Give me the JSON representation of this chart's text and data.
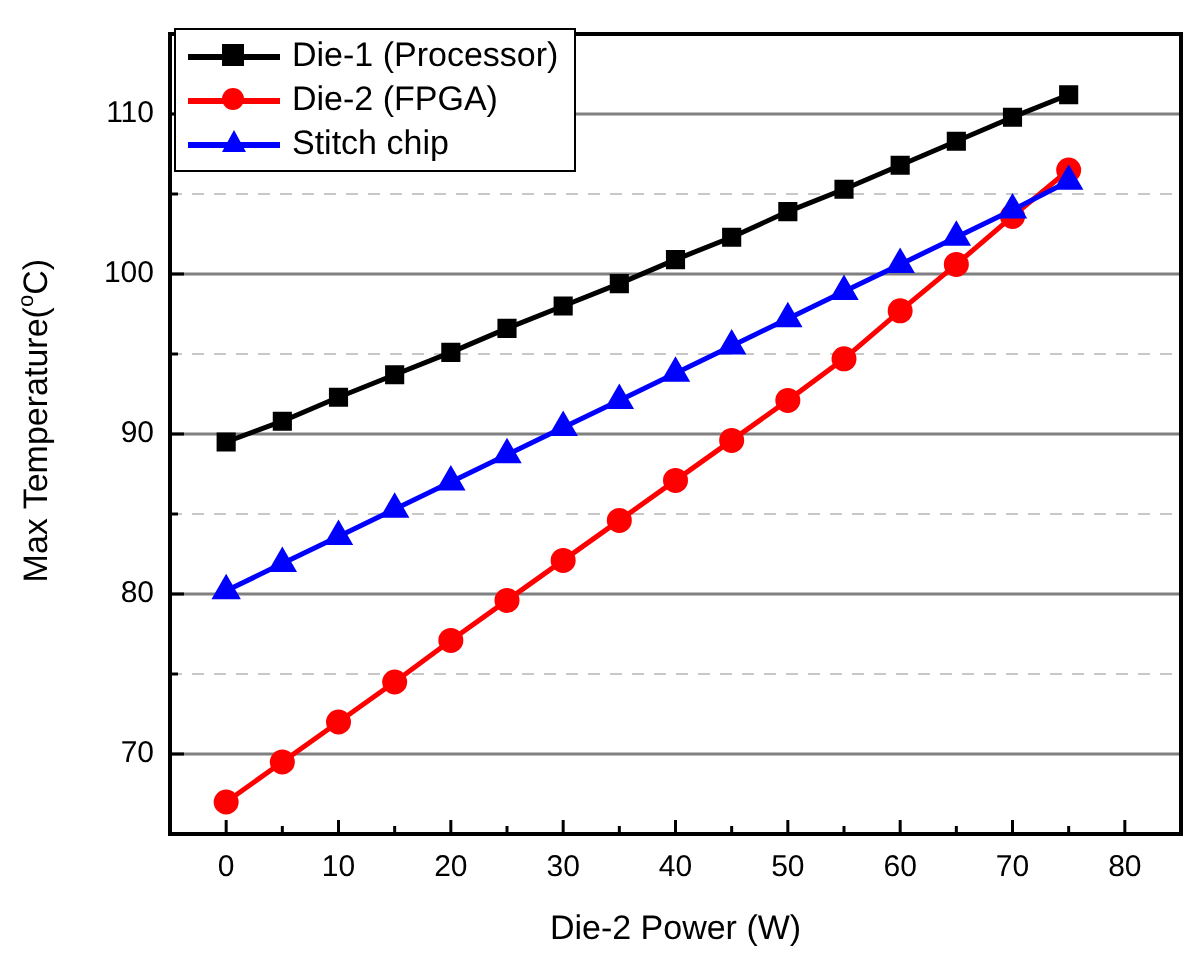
{
  "chart_data": {
    "type": "line",
    "xlabel": "Die-2 Power (W)",
    "ylabel": "Max Temperature($^{o}$C)",
    "x": [
      0,
      5,
      10,
      15,
      20,
      25,
      30,
      35,
      40,
      45,
      50,
      55,
      60,
      65,
      70,
      75
    ],
    "series": [
      {
        "name": "Die-1 (Processor)",
        "color": "#000000",
        "marker": "square",
        "values": [
          89.5,
          90.8,
          92.3,
          93.7,
          95.1,
          96.6,
          98.0,
          99.4,
          100.9,
          102.3,
          103.9,
          105.3,
          106.8,
          108.3,
          109.8,
          111.2
        ]
      },
      {
        "name": "Die-2 (FPGA)",
        "color": "#ff0000",
        "marker": "circle",
        "values": [
          67.0,
          69.5,
          72.0,
          74.5,
          77.1,
          79.6,
          82.1,
          84.6,
          87.1,
          89.6,
          92.1,
          94.7,
          97.7,
          100.6,
          103.6,
          106.5
        ]
      },
      {
        "name": "Stitch chip",
        "color": "#0000ff",
        "marker": "triangle",
        "values": [
          80.2,
          81.9,
          83.6,
          85.3,
          87.0,
          88.7,
          90.4,
          92.1,
          93.8,
          95.5,
          97.2,
          98.9,
          100.6,
          102.3,
          104.0,
          105.8
        ]
      }
    ],
    "xlim": [
      -5,
      85
    ],
    "xticks": [
      0,
      {
        "value": 5,
        "label": null
      },
      10,
      {
        "value": 15,
        "label": null
      },
      20,
      {
        "value": 25,
        "label": null
      },
      30,
      {
        "value": 35,
        "label": null
      },
      40,
      {
        "value": 45,
        "label": null
      },
      50,
      {
        "value": 55,
        "label": null
      },
      60,
      {
        "value": 65,
        "label": null
      },
      70,
      {
        "value": 75,
        "label": null
      },
      80
    ],
    "ylim": [
      65,
      115
    ],
    "yticks": [
      70,
      {
        "value": 75,
        "label": null
      },
      80,
      {
        "value": 85,
        "label": null
      },
      90,
      {
        "value": 95,
        "label": null
      },
      100,
      {
        "value": 105,
        "label": null
      },
      110
    ],
    "grid": "y",
    "legend": "top left",
    "line_style": "solid"
  }
}
